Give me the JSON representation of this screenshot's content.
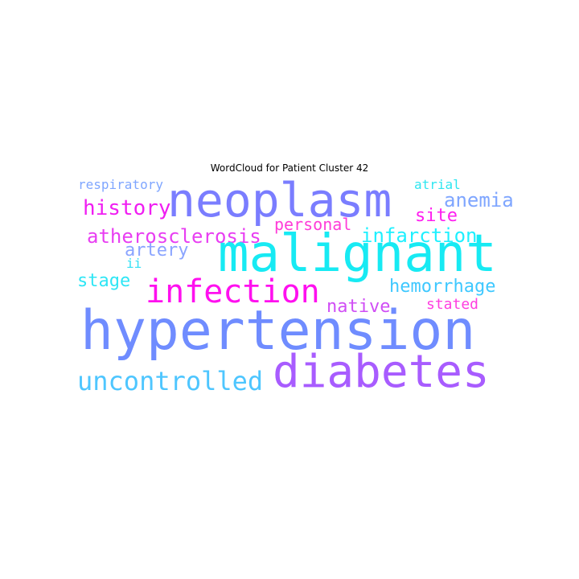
{
  "title": "WordCloud for Patient Cluster 42",
  "colors": {
    "cyan": "#1de9f5",
    "blue": "#6f8cff",
    "violet": "#a05cff",
    "magenta": "#ff1ef0",
    "sky": "#55c8ff",
    "lightblue": "#7fa6ff"
  },
  "words": {
    "hypertension": "hypertension",
    "malignant": "malignant",
    "neoplasm": "neoplasm",
    "diabetes": "diabetes",
    "infection": "infection",
    "uncontrolled": "uncontrolled",
    "history": "history",
    "atherosclerosis": "atherosclerosis",
    "infarction": "infarction",
    "anemia": "anemia",
    "hemorrhage": "hemorrhage",
    "artery": "artery",
    "site": "site",
    "stage": "stage",
    "native": "native",
    "personal": "personal",
    "respiratory": "respiratory",
    "atrial": "atrial",
    "stated": "stated",
    "ii": "ii"
  }
}
